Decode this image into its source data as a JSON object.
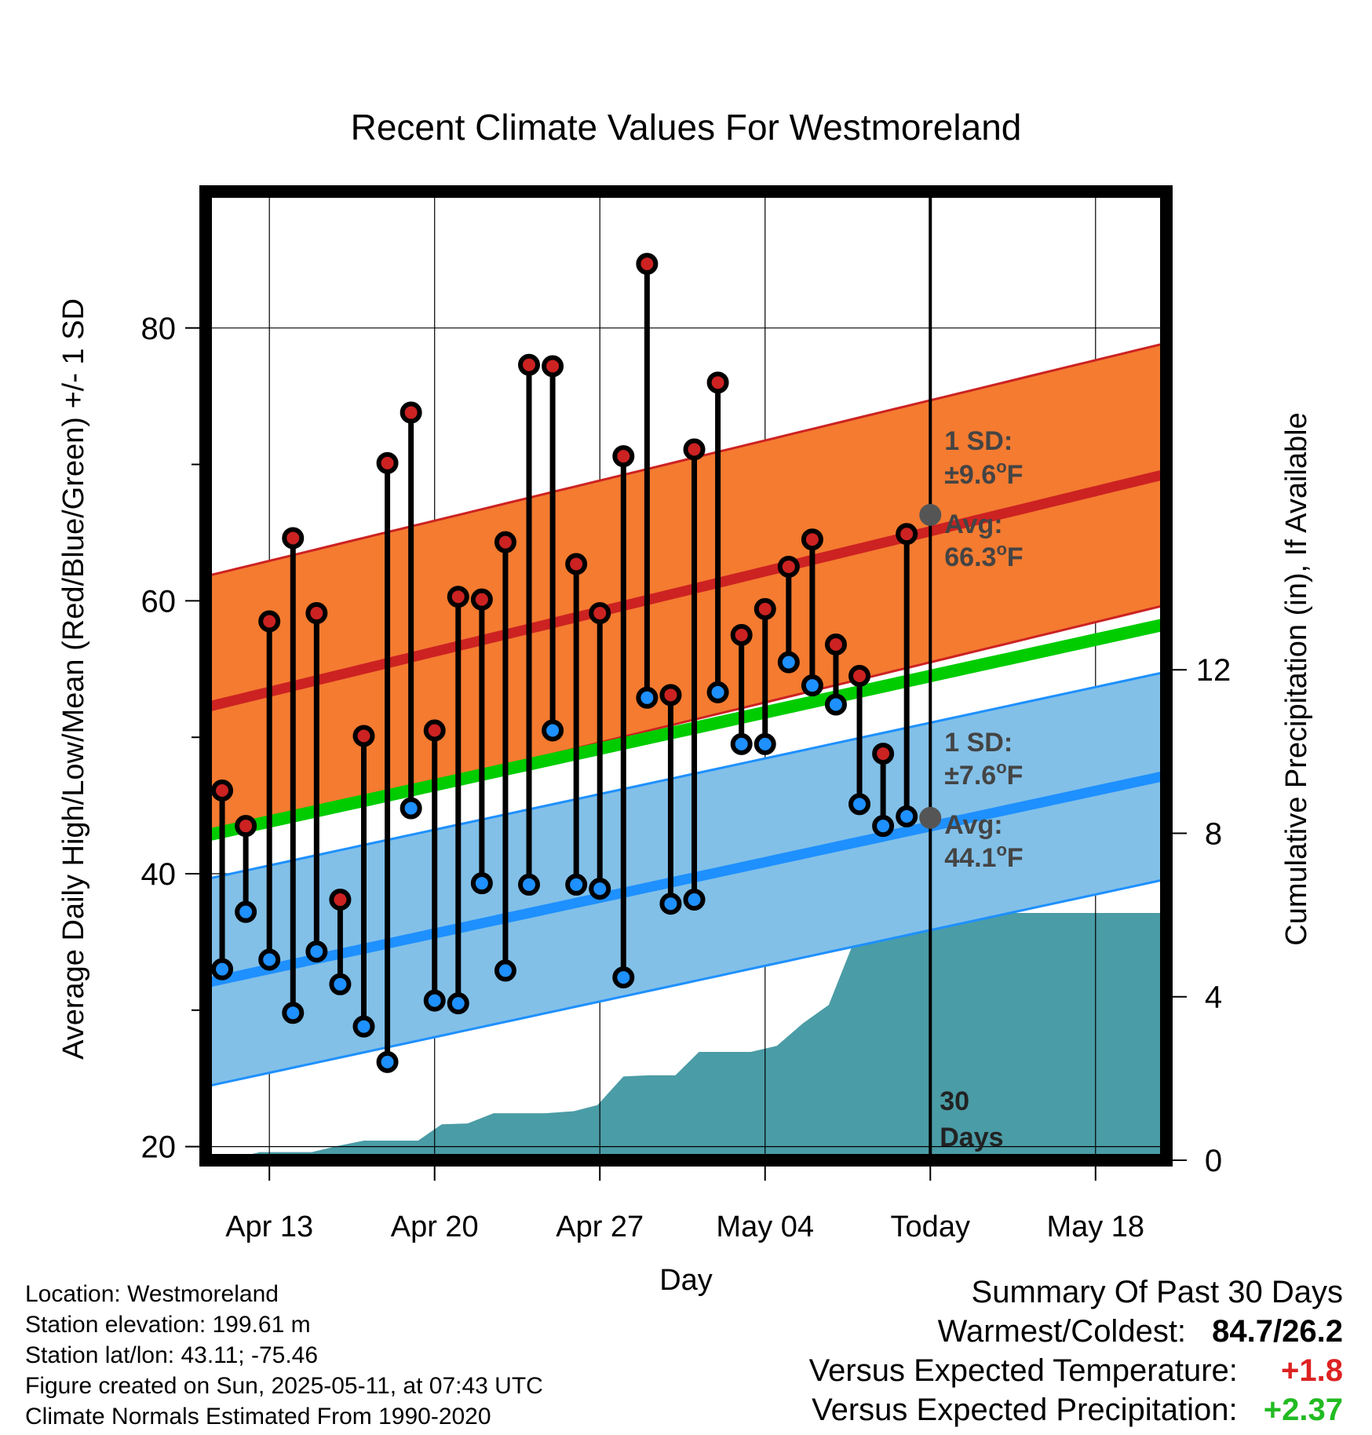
{
  "chart_data": {
    "type": "line",
    "title": "Recent Climate Values For Westmoreland",
    "xlabel": "Day",
    "ylabel": "Average Daily High/Low/Mean (Red/Blue/Green) +/- 1 SD",
    "y2label": "Cumulative Precipitation (in), If Available",
    "x_ticks": [
      "Apr 13",
      "Apr 20",
      "Apr 27",
      "May 04",
      "Today",
      "May 18"
    ],
    "x_tick_days": [
      2,
      9,
      16,
      23,
      30,
      37
    ],
    "y_ticks": [
      20,
      40,
      60,
      80
    ],
    "y_minor_ticks": [
      30,
      50,
      70
    ],
    "y2_ticks": [
      0,
      4,
      8,
      12
    ],
    "ylim": [
      19,
      90
    ],
    "y2lim": [
      0,
      23.7
    ],
    "xlim": [
      -0.7,
      40
    ],
    "today_day": 30,
    "days_label": "30\nDays",
    "grid": true,
    "x_days": [
      0,
      1,
      2,
      3,
      4,
      5,
      6,
      7,
      8,
      9,
      10,
      11,
      12,
      13,
      14,
      15,
      16,
      17,
      18,
      19,
      20,
      21,
      22,
      23,
      24,
      25,
      26,
      27,
      28,
      29
    ],
    "daily_high": [
      46.1,
      43.5,
      58.5,
      64.6,
      59.1,
      38.1,
      50.1,
      70.1,
      73.8,
      50.5,
      60.3,
      60.1,
      64.3,
      77.3,
      77.2,
      62.7,
      59.1,
      70.6,
      84.7,
      53.1,
      71.1,
      76.0,
      57.5,
      59.4,
      62.5,
      64.5,
      56.8,
      54.5,
      48.8,
      64.9
    ],
    "daily_low": [
      33.0,
      37.2,
      33.7,
      29.8,
      34.3,
      31.9,
      28.8,
      26.2,
      44.8,
      30.7,
      30.5,
      39.3,
      32.9,
      39.2,
      50.5,
      39.2,
      38.9,
      32.4,
      52.9,
      37.8,
      38.1,
      53.3,
      49.5,
      49.5,
      55.5,
      53.8,
      52.4,
      45.1,
      43.5,
      44.2
    ],
    "normal_high_start": 52.2,
    "normal_high_end": 69.3,
    "normal_high_today": 66.3,
    "high_sd": 9.6,
    "normal_low_start": 32.0,
    "normal_low_end": 47.2,
    "normal_low_today": 44.1,
    "low_sd": 7.6,
    "normal_mean_start": 42.8,
    "normal_mean_end": 58.3,
    "precip_x": [
      -0.7,
      0.5,
      1.6,
      2.7,
      3.8,
      4.9,
      6,
      7.2,
      8.3,
      9.3,
      10.4,
      11.5,
      12.6,
      13.7,
      14.9,
      15.9,
      17,
      18.1,
      19.2,
      20.2,
      21.3,
      22.4,
      23.5,
      24.6,
      25.7,
      26.8,
      27.9,
      29,
      30,
      31,
      40
    ],
    "precip_values": [
      0.05,
      0.05,
      0.2,
      0.2,
      0.2,
      0.35,
      0.48,
      0.48,
      0.48,
      0.88,
      0.9,
      1.15,
      1.15,
      1.15,
      1.2,
      1.35,
      2.05,
      2.08,
      2.08,
      2.65,
      2.65,
      2.65,
      2.8,
      3.35,
      3.8,
      5.4,
      5.8,
      5.8,
      6.0,
      6.05,
      6.05
    ],
    "colors": {
      "high": "#cc2222",
      "high_band": "#f47b30",
      "low": "#1e90ff",
      "low_band": "#82c0e8",
      "mean": "#00cc00",
      "precip": "#4a9ca6",
      "avg_marker": "#555555",
      "annot": "#444444",
      "positive_temp": "#dd2222",
      "positive_precip": "#22bb22"
    },
    "annotations": {
      "high_sd_label": "1 SD:",
      "high_sd_value": "±9.6",
      "high_avg_label": "Avg:",
      "high_avg_value": "66.3",
      "low_sd_label": "1 SD:",
      "low_sd_value": "±7.6",
      "low_avg_label": "Avg:",
      "low_avg_value": "44.1",
      "degree_unit": "o",
      "unit": "F"
    }
  },
  "meta": {
    "location": "Location: Westmoreland",
    "elevation": "Station elevation: 199.61 m",
    "latlon": "Station lat/lon: 43.11; -75.46",
    "created": "Figure created on Sun, 2025-05-11, at 07:43 UTC",
    "normals": "Climate Normals Estimated From 1990-2020"
  },
  "summary": {
    "title": "Summary Of Past 30 Days",
    "warm_cold_label": "Warmest/Coldest:",
    "warm_cold_value": "84.7/26.2",
    "temp_label": "Versus Expected Temperature:",
    "temp_value": "+1.8",
    "precip_label": "Versus Expected Precipitation:",
    "precip_value": "+2.37"
  }
}
